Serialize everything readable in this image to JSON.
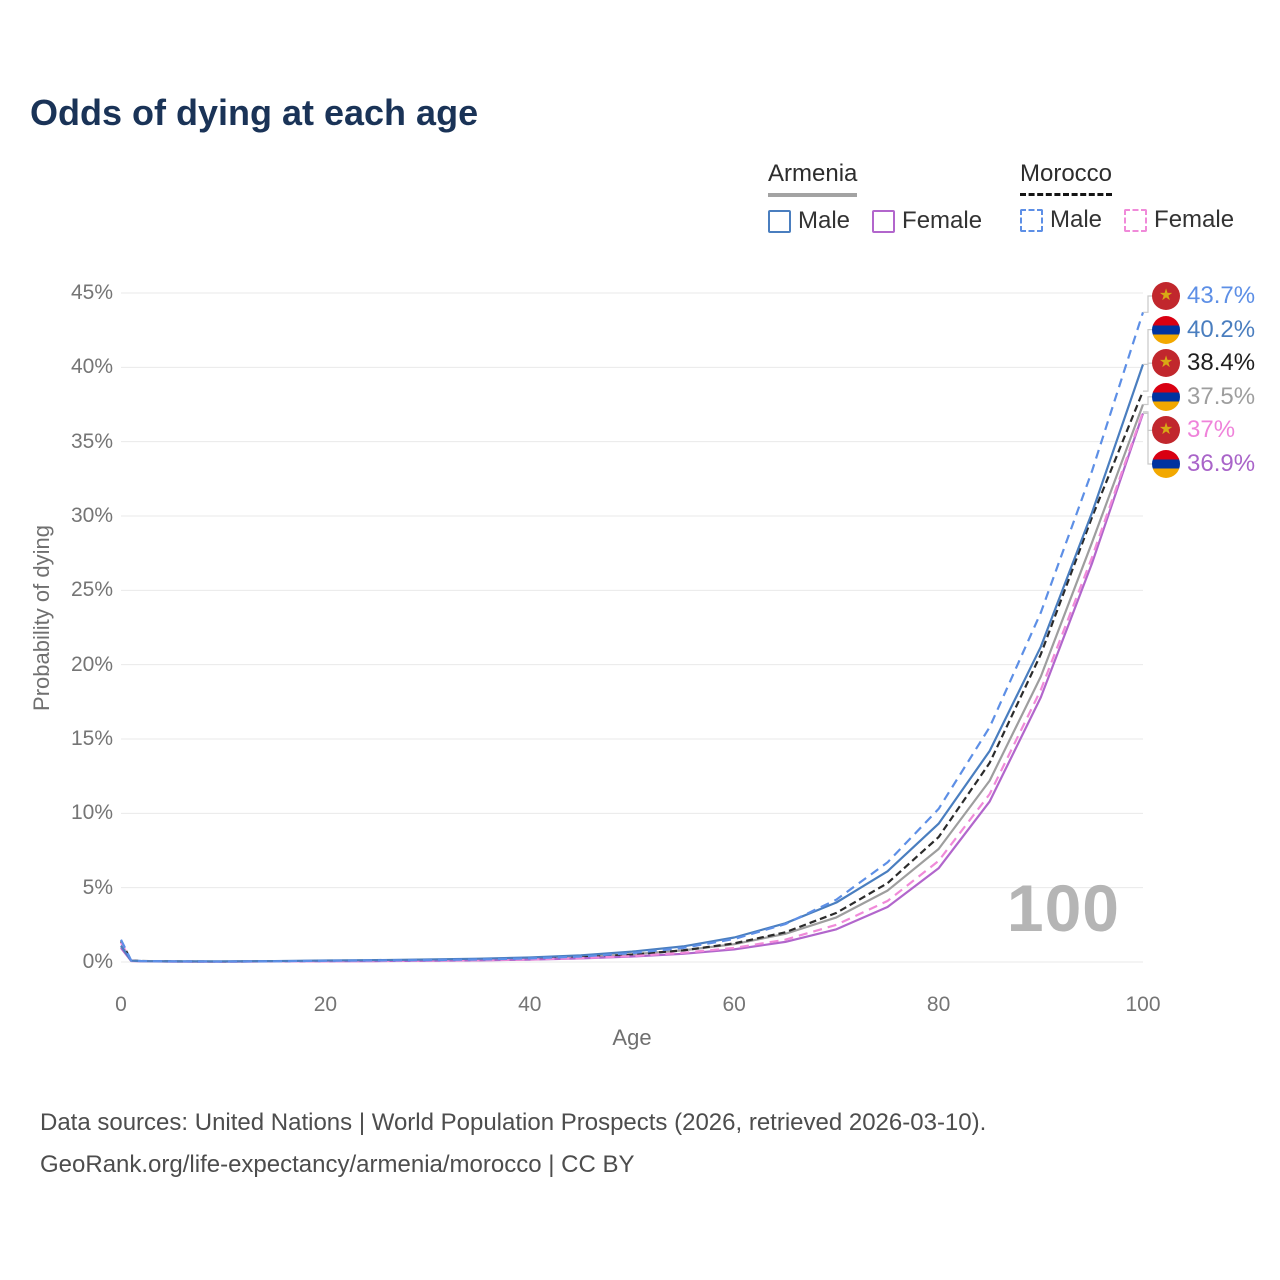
{
  "title": "Odds of dying at each age",
  "legend": {
    "groups": [
      {
        "country": "Armenia",
        "line_style": "solid",
        "items": [
          {
            "label": "Male",
            "color": "#4a7ebf"
          },
          {
            "label": "Female",
            "color": "#b266cc"
          }
        ]
      },
      {
        "country": "Morocco",
        "line_style": "dashed",
        "items": [
          {
            "label": "Male",
            "color": "#5d8fe6"
          },
          {
            "label": "Female",
            "color": "#f08ad9"
          }
        ]
      }
    ]
  },
  "chart_data": {
    "type": "line",
    "title": "Odds of dying at each age",
    "xlabel": "Age",
    "ylabel": "Probability of dying",
    "xlim": [
      0,
      100
    ],
    "ylim_percent": [
      0,
      45
    ],
    "grid": "horizontal",
    "legend_position": "top-right",
    "age_indicator": "100",
    "x_ticks": [
      0,
      20,
      40,
      60,
      80,
      100
    ],
    "y_ticks": [
      "0%",
      "5%",
      "10%",
      "15%",
      "20%",
      "25%",
      "30%",
      "35%",
      "40%",
      "45%"
    ],
    "ages": [
      0,
      1,
      2,
      5,
      10,
      15,
      20,
      25,
      30,
      35,
      40,
      45,
      50,
      55,
      60,
      65,
      70,
      75,
      80,
      85,
      90,
      95,
      100
    ],
    "series": [
      {
        "name": "Armenia Both sexes",
        "slug": "armenia-both",
        "color": "#9e9e9e",
        "style": "solid",
        "values": [
          1.0,
          0.08,
          0.055,
          0.035,
          0.035,
          0.05,
          0.08,
          0.1,
          0.12,
          0.16,
          0.23,
          0.34,
          0.52,
          0.78,
          1.2,
          1.9,
          3.0,
          4.8,
          7.6,
          12.2,
          19.2,
          28.2,
          37.5
        ]
      },
      {
        "name": "Morocco Both sexes",
        "slug": "morocco-both",
        "color": "#2b2b2b",
        "style": "dashed",
        "values": [
          1.4,
          0.095,
          0.065,
          0.04,
          0.03,
          0.045,
          0.065,
          0.085,
          0.11,
          0.145,
          0.2,
          0.31,
          0.5,
          0.78,
          1.25,
          2.0,
          3.3,
          5.3,
          8.4,
          13.4,
          20.7,
          29.9,
          38.4
        ]
      },
      {
        "name": "Armenia Female",
        "slug": "armenia-female",
        "color": "#b266cc",
        "style": "solid",
        "values": [
          0.95,
          0.07,
          0.05,
          0.03,
          0.03,
          0.04,
          0.05,
          0.06,
          0.08,
          0.11,
          0.16,
          0.24,
          0.37,
          0.55,
          0.85,
          1.35,
          2.2,
          3.7,
          6.3,
          10.8,
          17.8,
          26.8,
          36.9
        ]
      },
      {
        "name": "Morocco Female",
        "slug": "morocco-female",
        "color": "#f08ad9",
        "style": "dashed",
        "values": [
          1.3,
          0.09,
          0.06,
          0.04,
          0.03,
          0.04,
          0.05,
          0.07,
          0.09,
          0.12,
          0.17,
          0.26,
          0.4,
          0.62,
          0.95,
          1.5,
          2.5,
          4.1,
          6.8,
          11.3,
          18.3,
          27.2,
          37.0
        ]
      },
      {
        "name": "Armenia Male",
        "slug": "armenia-male",
        "color": "#4a7ebf",
        "style": "solid",
        "values": [
          1.1,
          0.09,
          0.06,
          0.04,
          0.04,
          0.06,
          0.1,
          0.13,
          0.17,
          0.22,
          0.3,
          0.45,
          0.7,
          1.05,
          1.65,
          2.6,
          4.0,
          6.1,
          9.3,
          14.2,
          21.2,
          30.2,
          40.2
        ]
      },
      {
        "name": "Morocco Male",
        "slug": "morocco-male",
        "color": "#5d8fe6",
        "style": "dashed",
        "values": [
          1.5,
          0.1,
          0.07,
          0.04,
          0.03,
          0.05,
          0.08,
          0.1,
          0.13,
          0.17,
          0.24,
          0.37,
          0.6,
          0.95,
          1.55,
          2.55,
          4.2,
          6.7,
          10.3,
          15.8,
          23.5,
          33.0,
          43.7
        ]
      }
    ],
    "end_labels": [
      {
        "value": "43.7%",
        "value_num": 43.7,
        "flag": "morocco",
        "series": "morocco-male",
        "color": "#5d8fe6"
      },
      {
        "value": "40.2%",
        "value_num": 40.2,
        "flag": "armenia",
        "series": "armenia-male",
        "color": "#4a7ebf"
      },
      {
        "value": "38.4%",
        "value_num": 38.4,
        "flag": "morocco",
        "series": "morocco-both",
        "color": "#1f1f1f"
      },
      {
        "value": "37.5%",
        "value_num": 37.5,
        "flag": "armenia",
        "series": "armenia-both",
        "color": "#9e9e9e"
      },
      {
        "value": "37%",
        "value_num": 37.0,
        "flag": "morocco",
        "series": "morocco-female",
        "color": "#ef83da"
      },
      {
        "value": "36.9%",
        "value_num": 36.9,
        "flag": "armenia",
        "series": "armenia-female",
        "color": "#a964c9"
      }
    ]
  },
  "footer": {
    "line1": "Data sources: United Nations | World Population Prospects (2026, retrieved 2026-03-10).",
    "line2": "GeoRank.org/life-expectancy/armenia/morocco | CC BY"
  }
}
